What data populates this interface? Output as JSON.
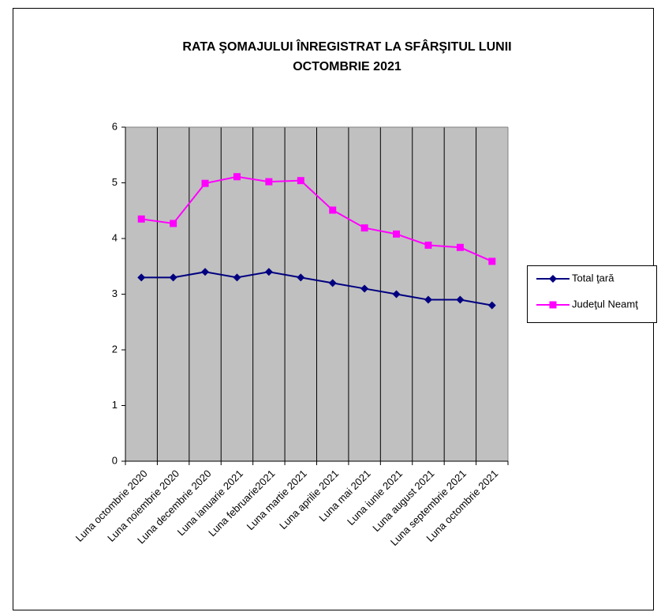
{
  "chart_data": {
    "type": "line",
    "title": [
      "RATA ŞOMAJULUI ÎNREGISTRAT LA SFÂRŞITUL LUNII",
      "OCTOMBRIE 2021"
    ],
    "categories": [
      "Luna octombrie 2020",
      "Luna noiembrie 2020",
      "Luna decembrie 2020",
      "Luna ianuarie 2021",
      "Luna februarie2021",
      "Luna martie 2021",
      "Luna aprilie 2021",
      "Luna mai  2021",
      "Luna iunie  2021",
      "Luna august 2021",
      "Luna septembrie 2021",
      "Luna octombrie 2021"
    ],
    "series": [
      {
        "name": "Total ţară",
        "color": "#000080",
        "marker": "diamond",
        "values": [
          3.3,
          3.3,
          3.4,
          3.3,
          3.4,
          3.3,
          3.2,
          3.1,
          3.0,
          2.9,
          2.9,
          2.8
        ]
      },
      {
        "name": "Judeţul Neamţ",
        "color": "#ff00ff",
        "marker": "square",
        "values": [
          4.35,
          4.27,
          4.99,
          5.11,
          5.02,
          5.04,
          4.51,
          4.19,
          4.08,
          3.88,
          3.84,
          3.59
        ]
      }
    ],
    "ylim": [
      0,
      6
    ],
    "yticks": [
      0,
      1,
      2,
      3,
      4,
      5,
      6
    ],
    "grid": false,
    "legend": "right"
  }
}
